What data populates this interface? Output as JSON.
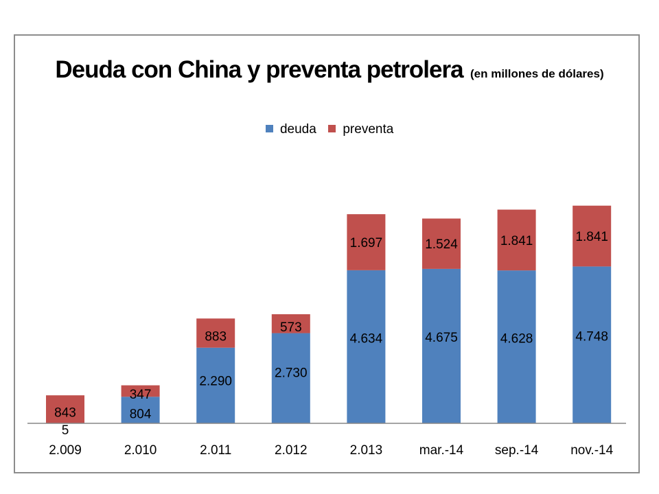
{
  "chart_data": {
    "type": "bar",
    "stacked": true,
    "title": "Deuda con China y preventa petrolera",
    "subtitle": "(en millones de dólares)",
    "categories": [
      "2.009",
      "2.010",
      "2.011",
      "2.012",
      "2.013",
      "mar.-14",
      "sep.-14",
      "nov.-14"
    ],
    "series": [
      {
        "name": "deuda",
        "color": "#4f81bd",
        "values": [
          5,
          804,
          2290,
          2730,
          4634,
          4675,
          4628,
          4748
        ],
        "labels": [
          "5",
          "804",
          "2.290",
          "2.730",
          "4.634",
          "4.675",
          "4.628",
          "4.748"
        ]
      },
      {
        "name": "preventa",
        "color": "#c0504d",
        "values": [
          843,
          347,
          883,
          573,
          1697,
          1524,
          1841,
          1841
        ],
        "labels": [
          "843",
          "347",
          "883",
          "573",
          "1.697",
          "1.524",
          "1.841",
          "1.841"
        ]
      }
    ],
    "legend_position": "top",
    "grid": false,
    "ylim": [
      0,
      7000
    ]
  }
}
